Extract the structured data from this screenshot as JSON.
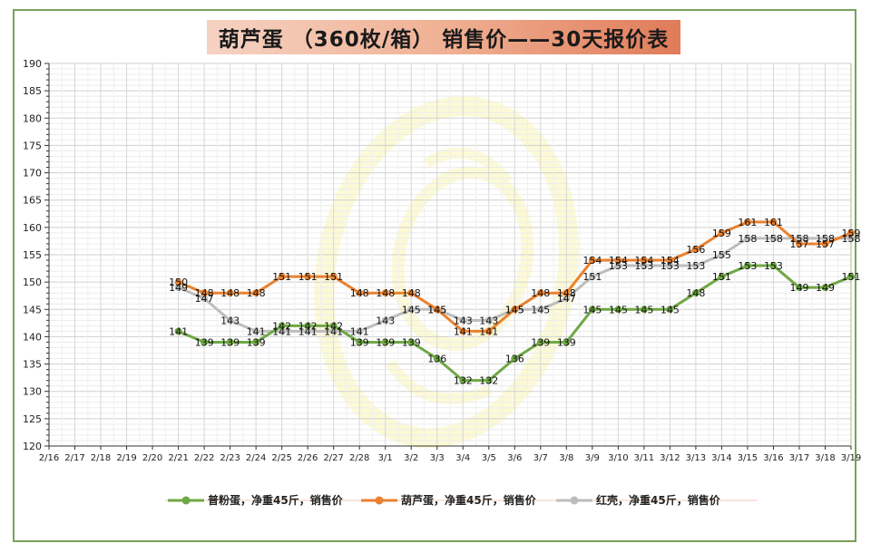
{
  "chart_data": {
    "type": "line",
    "title": "葫芦蛋 （360枚/箱） 销售价——30天报价表",
    "xlabel": "",
    "ylabel": "",
    "ylim": [
      120,
      190
    ],
    "yticks": [
      120,
      125,
      130,
      135,
      140,
      145,
      150,
      155,
      160,
      165,
      170,
      175,
      180,
      185,
      190
    ],
    "grid": true,
    "legend_position": "bottom",
    "categories": [
      "2/16",
      "2/17",
      "2/18",
      "2/19",
      "2/20",
      "2/21",
      "2/22",
      "2/23",
      "2/24",
      "2/25",
      "2/26",
      "2/27",
      "2/28",
      "3/1",
      "3/2",
      "3/3",
      "3/4",
      "3/5",
      "3/6",
      "3/7",
      "3/8",
      "3/9",
      "3/10",
      "3/11",
      "3/12",
      "3/13",
      "3/14",
      "3/15",
      "3/16",
      "3/17",
      "3/18",
      "3/19"
    ],
    "series": [
      {
        "name": "普粉蛋，净重45斤，销售价",
        "color": "#6fa845",
        "values": [
          null,
          null,
          null,
          null,
          null,
          141,
          139,
          139,
          139,
          142,
          142,
          142,
          139,
          139,
          139,
          136,
          132,
          132,
          136,
          139,
          139,
          145,
          145,
          145,
          145,
          148,
          151,
          153,
          153,
          149,
          149,
          151
        ]
      },
      {
        "name": "葫芦蛋，净重45斤，销售价",
        "color": "#e9812f",
        "values": [
          null,
          null,
          null,
          null,
          null,
          150,
          148,
          148,
          148,
          151,
          151,
          151,
          148,
          148,
          148,
          145,
          141,
          141,
          145,
          148,
          148,
          154,
          154,
          154,
          154,
          156,
          159,
          161,
          161,
          157,
          157,
          159
        ]
      },
      {
        "name": "红壳，净重45斤，销售价",
        "color": "#bdbdbd",
        "values": [
          null,
          null,
          null,
          null,
          null,
          149,
          147,
          143,
          141,
          141,
          141,
          141,
          141,
          143,
          145,
          145,
          143,
          143,
          145,
          145,
          147,
          151,
          153,
          153,
          153,
          153,
          155,
          158,
          158,
          158,
          158,
          158
        ]
      }
    ]
  }
}
